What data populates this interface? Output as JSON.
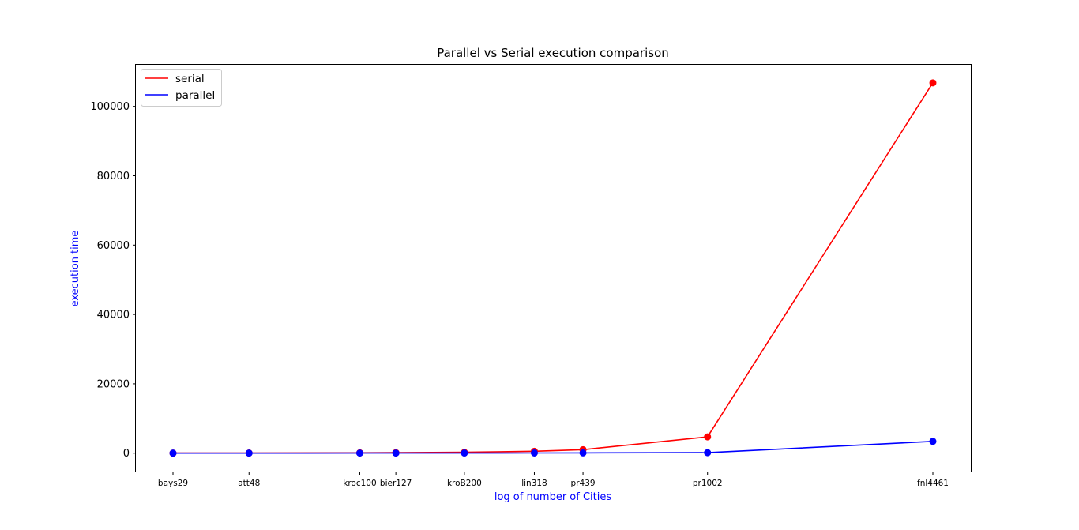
{
  "chart_data": {
    "type": "line",
    "title": "Parallel vs Serial execution comparison",
    "xlabel": "log of number of Cities",
    "ylabel": "execution time",
    "x_scale": "log",
    "categories": [
      "bays29",
      "att48",
      "kroc100",
      "bier127",
      "kroB200",
      "lin318",
      "pr439",
      "pr1002",
      "fnl4461"
    ],
    "x": [
      29,
      48,
      100,
      127,
      200,
      318,
      439,
      1002,
      4461
    ],
    "ylim": [
      -5300,
      112000
    ],
    "yticks": [
      0,
      20000,
      40000,
      60000,
      80000,
      100000
    ],
    "ytick_labels": [
      "0",
      "20000",
      "40000",
      "60000",
      "80000",
      "100000"
    ],
    "grid": false,
    "legend_position": "upper-left",
    "series": [
      {
        "name": "serial",
        "color": "#ff0000",
        "values": [
          20,
          40,
          100,
          150,
          250,
          550,
          1000,
          4700,
          106800
        ]
      },
      {
        "name": "parallel",
        "color": "#0000ff",
        "values": [
          10,
          15,
          25,
          30,
          40,
          60,
          80,
          150,
          3400
        ]
      }
    ],
    "label_color": "#0000ff"
  }
}
